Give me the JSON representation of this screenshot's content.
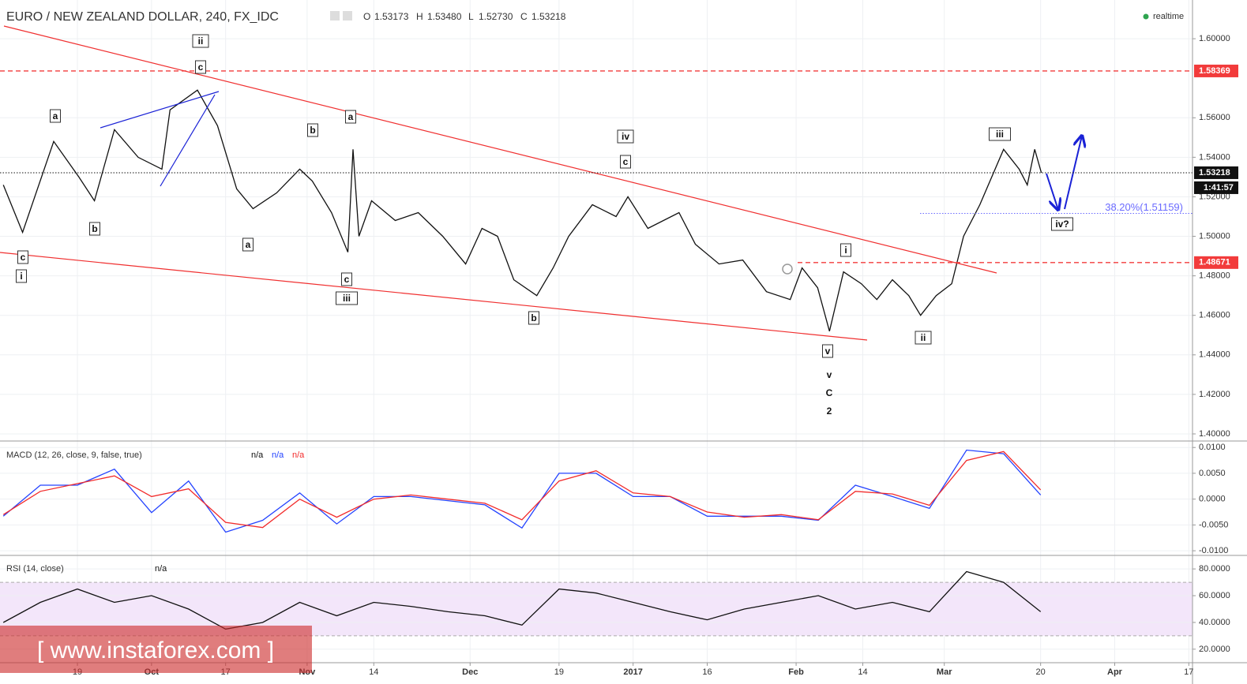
{
  "header": {
    "symbol": "EURO / NEW ZEALAND DOLLAR, 240, FX_IDC",
    "ohlc": [
      {
        "label": "O",
        "value": "1.53173"
      },
      {
        "label": "H",
        "value": "1.53480"
      },
      {
        "label": "L",
        "value": "1.52730"
      },
      {
        "label": "C",
        "value": "1.53218"
      }
    ],
    "status": "realtime"
  },
  "watermark": "[ www.instaforex.com ]",
  "chart_data": [
    {
      "type": "line",
      "color": "#111111",
      "x": [
        -10,
        -7.4,
        -3.2,
        0.2,
        2.3,
        5,
        8.2,
        11.4,
        12.5,
        16.2,
        18.9,
        21.5,
        23.7,
        26.9,
        30,
        31.7,
        34.3,
        36.5,
        37.2,
        38,
        39.7,
        42.9,
        46,
        49.3,
        52.4,
        54.6,
        56.7,
        58.9,
        62,
        64.2,
        66.3,
        69.5,
        72.7,
        74.3,
        77,
        81.2,
        83.4,
        86.6,
        89.8,
        93,
        96.2,
        97.8,
        99.9,
        101.5,
        103.4,
        105.8,
        107.9,
        110,
        112.2,
        113.8,
        115.9,
        118,
        119.6,
        121.8,
        125,
        127.1,
        128.2,
        129.2,
        130.1
      ],
      "values": [
        1.526,
        1.502,
        1.548,
        1.53,
        1.518,
        1.554,
        1.54,
        1.534,
        1.564,
        1.574,
        1.556,
        1.524,
        1.514,
        1.522,
        1.534,
        1.528,
        1.512,
        1.492,
        1.544,
        1.5,
        1.518,
        1.508,
        1.512,
        1.5,
        1.486,
        1.504,
        1.5,
        1.478,
        1.47,
        1.484,
        1.5,
        1.516,
        1.51,
        1.52,
        1.504,
        1.512,
        1.496,
        1.486,
        1.488,
        1.472,
        1.468,
        1.484,
        1.474,
        1.452,
        1.482,
        1.476,
        1.468,
        1.478,
        1.47,
        1.46,
        1.47,
        1.476,
        1.5,
        1.516,
        1.544,
        1.534,
        1.526,
        1.544,
        1.53218
      ],
      "xlim": [
        -10.45,
        150.5
      ],
      "xticks": [
        {
          "value": 0,
          "label": "19"
        },
        {
          "value": 10,
          "label": "Oct"
        },
        {
          "value": 20,
          "label": "17"
        },
        {
          "value": 31,
          "label": "Nov"
        },
        {
          "value": 40,
          "label": "14"
        },
        {
          "value": 53,
          "label": "Dec"
        },
        {
          "value": 65,
          "label": "19"
        },
        {
          "value": 75,
          "label": "2017"
        },
        {
          "value": 85,
          "label": "16"
        },
        {
          "value": 97,
          "label": "Feb"
        },
        {
          "value": 106,
          "label": "14"
        },
        {
          "value": 117,
          "label": "Mar"
        },
        {
          "value": 130,
          "label": "20"
        },
        {
          "value": 140,
          "label": "Apr"
        },
        {
          "value": 150,
          "label": "17"
        }
      ],
      "ylim": [
        1.3968,
        1.6196
      ],
      "yticks": [
        {
          "value": 1.4,
          "label": "1.40000"
        },
        {
          "value": 1.42,
          "label": "1.42000"
        },
        {
          "value": 1.44,
          "label": "1.44000"
        },
        {
          "value": 1.46,
          "label": "1.46000"
        },
        {
          "value": 1.48,
          "label": "1.48000"
        },
        {
          "value": 1.5,
          "label": "1.50000"
        },
        {
          "value": 1.52,
          "label": "1.52000"
        },
        {
          "value": 1.54,
          "label": "1.54000"
        },
        {
          "value": 1.56,
          "label": "1.56000"
        },
        {
          "value": 1.6,
          "label": "1.60000"
        }
      ],
      "grid": true,
      "levels": [
        {
          "value": 1.58369,
          "color": "#f23b3b",
          "style": "dashed"
        },
        {
          "value": 1.48671,
          "color": "#f23b3b",
          "style": "dashed"
        },
        {
          "value": 1.53218,
          "color": "#111111",
          "style": "dotted"
        }
      ],
      "countdown": "1:41:57",
      "fib": {
        "value": 1.51159,
        "label": "38.20%(1.51159)",
        "color": "#6b6bff"
      },
      "wave_labels": [
        "ii",
        "c",
        "a",
        "b",
        "c",
        "i",
        "b",
        "a",
        "a",
        "c",
        "iii",
        "b",
        "iv",
        "c",
        "i",
        "v",
        "ii",
        "iii",
        "iv?"
      ],
      "wave_labels_plain": [
        "v",
        "C",
        "2"
      ]
    },
    {
      "type": "line",
      "title": "MACD (12, 26, close, 9, false, true)",
      "status": [
        "n/a",
        "n/a",
        "n/a"
      ],
      "x": [
        -10,
        -5,
        0,
        5,
        10,
        15,
        20,
        25,
        30,
        35,
        40,
        45,
        50,
        55,
        60,
        65,
        70,
        75,
        80,
        85,
        90,
        95,
        100,
        105,
        110,
        115,
        120,
        125,
        130
      ],
      "series": [
        {
          "color": "#2443ff",
          "values": [
            -0.0033,
            0.0027,
            0.0027,
            0.0058,
            -0.0026,
            0.0035,
            -0.0064,
            -0.0041,
            0.0012,
            -0.0048,
            0.0005,
            0.0005,
            -0.0003,
            -0.0011,
            -0.0056,
            0.005,
            0.005,
            0.0005,
            0.0005,
            -0.0033,
            -0.0033,
            -0.0033,
            -0.0041,
            0.0027,
            0.0005,
            -0.0018,
            0.0095,
            0.0088,
            0.0008
          ]
        },
        {
          "color": "#f22b2b",
          "values": [
            -0.003,
            0.0015,
            0.003,
            0.0045,
            0.0005,
            0.002,
            -0.0045,
            -0.0055,
            0,
            -0.0035,
            0,
            0.0008,
            0,
            -0.0008,
            -0.004,
            0.0035,
            0.0055,
            0.0012,
            0.0005,
            -0.0025,
            -0.0035,
            -0.003,
            -0.004,
            0.0015,
            0.001,
            -0.0012,
            0.0075,
            0.0092,
            0.0018
          ]
        }
      ],
      "xlim": [
        -10.45,
        150.5
      ],
      "ylim": [
        -0.0109,
        0.0111
      ],
      "yticks": [
        {
          "value": -0.01,
          "label": "-0.0100"
        },
        {
          "value": -0.005,
          "label": "-0.0050"
        },
        {
          "value": 0,
          "label": "0.0000"
        },
        {
          "value": 0.005,
          "label": "0.0050"
        },
        {
          "value": 0.01,
          "label": "0.0100"
        }
      ],
      "grid": true
    },
    {
      "type": "line",
      "title": "RSI (14, close)",
      "status": [
        "n/a"
      ],
      "color": "#111111",
      "band": [
        30,
        70
      ],
      "band_color": "#f3e6fa",
      "x": [
        -10,
        -5,
        0,
        5,
        10,
        15,
        20,
        25,
        30,
        35,
        40,
        45,
        50,
        55,
        60,
        65,
        70,
        75,
        80,
        85,
        90,
        95,
        100,
        105,
        110,
        115,
        120,
        125,
        130
      ],
      "values": [
        40,
        55,
        65,
        55,
        60,
        50,
        35,
        40,
        55,
        45,
        55,
        52,
        48,
        45,
        38,
        65,
        62,
        55,
        48,
        42,
        50,
        55,
        60,
        50,
        55,
        48,
        78,
        70,
        48
      ],
      "xlim": [
        -10.45,
        150.5
      ],
      "ylim": [
        9.9,
        90.1
      ],
      "yticks": [
        {
          "value": 20,
          "label": "20.0000"
        },
        {
          "value": 40,
          "label": "40.0000"
        },
        {
          "value": 60,
          "label": "60.0000"
        },
        {
          "value": 80,
          "label": "80.0000"
        }
      ],
      "grid": true
    }
  ]
}
